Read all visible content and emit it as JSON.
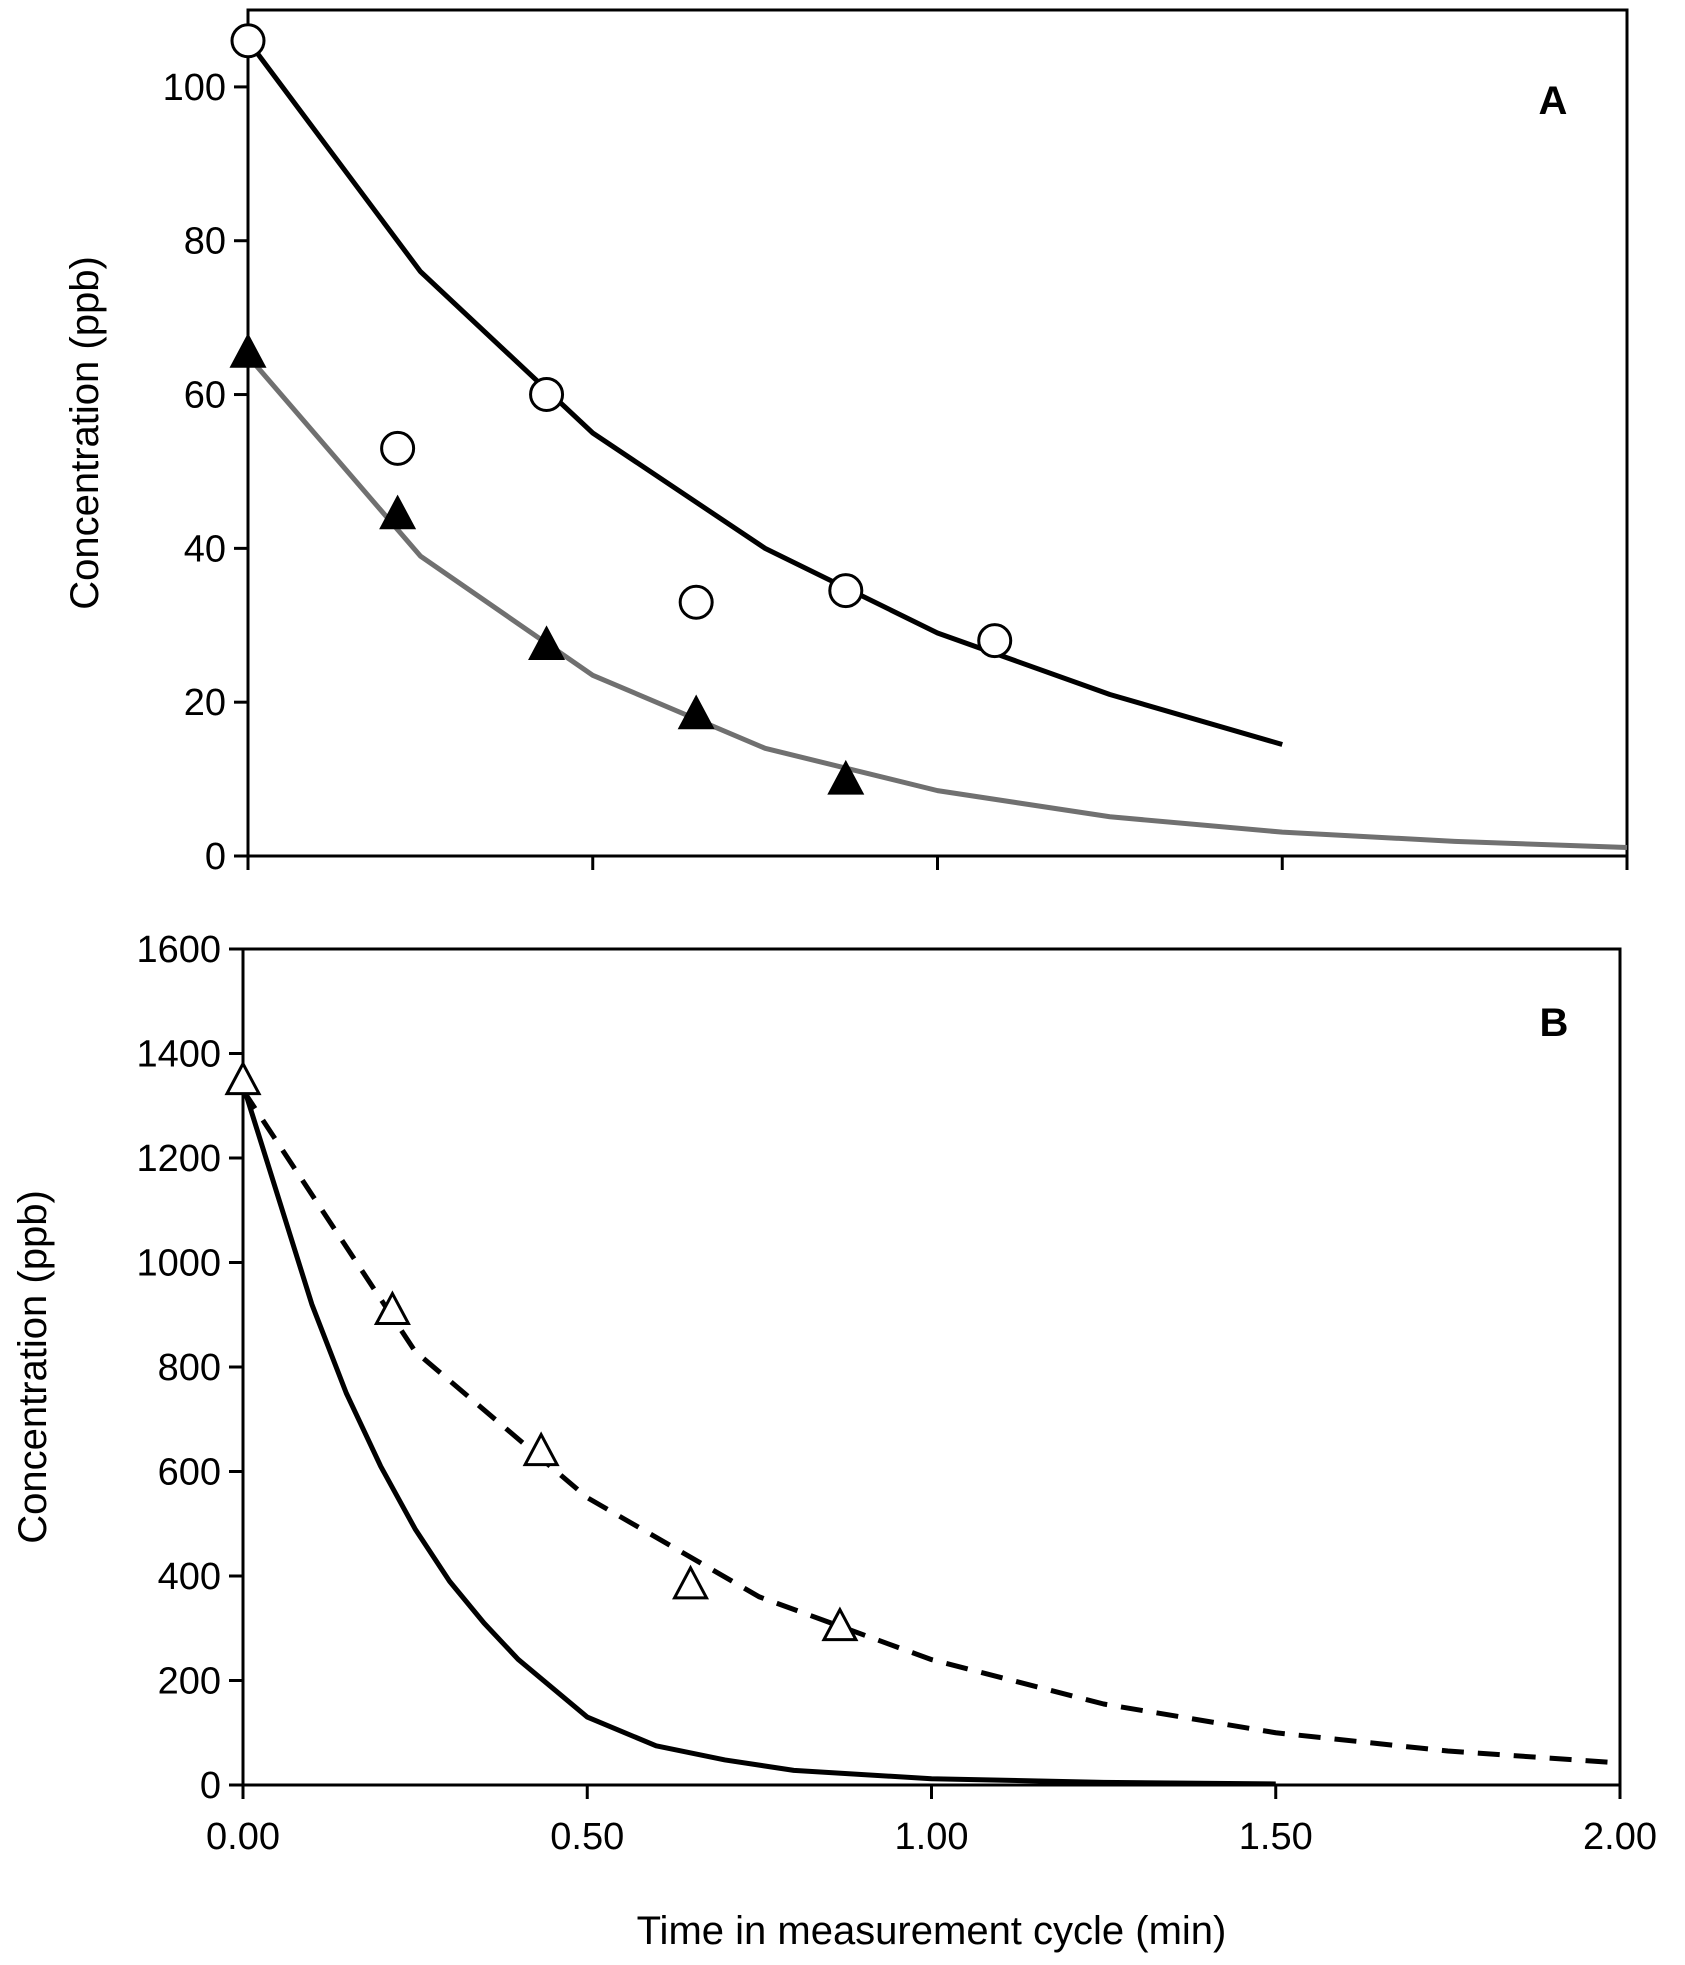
{
  "chart_data": [
    {
      "panel": "A",
      "type": "scatter",
      "ylabel": "Concentration (ppb)",
      "xlabel": "",
      "xlim": [
        0,
        2
      ],
      "ylim": [
        0,
        110
      ],
      "xticks": [
        0,
        0.5,
        1,
        1.5,
        2
      ],
      "yticks": [
        0,
        20,
        40,
        60,
        80,
        100
      ],
      "ytick_labels": [
        "0",
        "20",
        "40",
        "60",
        "80",
        "100"
      ],
      "series": [
        {
          "name": "open circles",
          "marker": "circle-open",
          "x": [
            0,
            0.217,
            0.433,
            0.65,
            0.867,
            1.083
          ],
          "y": [
            106,
            53,
            60,
            33,
            34.5,
            28
          ]
        },
        {
          "name": "filled triangles",
          "marker": "triangle-filled",
          "x": [
            0,
            0.217,
            0.433,
            0.65,
            0.867
          ],
          "y": [
            65.5,
            44.5,
            27.5,
            18.5,
            10
          ]
        }
      ],
      "fits": [
        {
          "name": "fit to open circles",
          "color": "#000000",
          "dash": "solid",
          "x": [
            0,
            0.25,
            0.5,
            0.75,
            1.0,
            1.25,
            1.5
          ],
          "y": [
            106,
            76,
            55,
            40,
            29,
            21,
            14.5
          ]
        },
        {
          "name": "fit to filled triangles",
          "color": "#707070",
          "dash": "solid",
          "x": [
            0,
            0.25,
            0.5,
            0.75,
            1.0,
            1.25,
            1.5,
            1.75,
            2.0
          ],
          "y": [
            65,
            39,
            23.5,
            14,
            8.5,
            5.1,
            3.1,
            1.9,
            1.1
          ]
        }
      ]
    },
    {
      "panel": "B",
      "type": "scatter",
      "ylabel": "Concentration (ppb)",
      "xlabel": "Time in measurement cycle (min)",
      "xlim": [
        0,
        2
      ],
      "ylim": [
        0,
        1600
      ],
      "xticks": [
        0,
        0.5,
        1,
        1.5,
        2
      ],
      "xtick_labels": [
        "0.00",
        "0.50",
        "1.00",
        "1.50",
        "2.00"
      ],
      "yticks": [
        0,
        200,
        400,
        600,
        800,
        1000,
        1200,
        1400,
        1600
      ],
      "ytick_labels": [
        "0",
        "200",
        "400",
        "600",
        "800",
        "1000",
        "1200",
        "1400",
        "1600"
      ],
      "series": [
        {
          "name": "open triangles",
          "marker": "triangle-open",
          "x": [
            0,
            0.217,
            0.433,
            0.65,
            0.867
          ],
          "y": [
            1350,
            910,
            640,
            385,
            305
          ]
        }
      ],
      "fits": [
        {
          "name": "dashed fit",
          "color": "#000000",
          "dash": "dashed",
          "x": [
            0,
            0.25,
            0.5,
            0.75,
            1.0,
            1.25,
            1.5,
            1.75,
            2.0
          ],
          "y": [
            1330,
            830,
            550,
            360,
            240,
            155,
            100,
            65,
            42
          ]
        },
        {
          "name": "solid fit",
          "color": "#000000",
          "dash": "solid",
          "x": [
            0,
            0.05,
            0.1,
            0.15,
            0.2,
            0.25,
            0.3,
            0.35,
            0.4,
            0.5,
            0.6,
            0.7,
            0.8,
            1.0,
            1.25,
            1.5
          ],
          "y": [
            1340,
            1130,
            920,
            750,
            610,
            490,
            390,
            310,
            240,
            130,
            75,
            48,
            28,
            12,
            5,
            2
          ]
        }
      ]
    }
  ]
}
